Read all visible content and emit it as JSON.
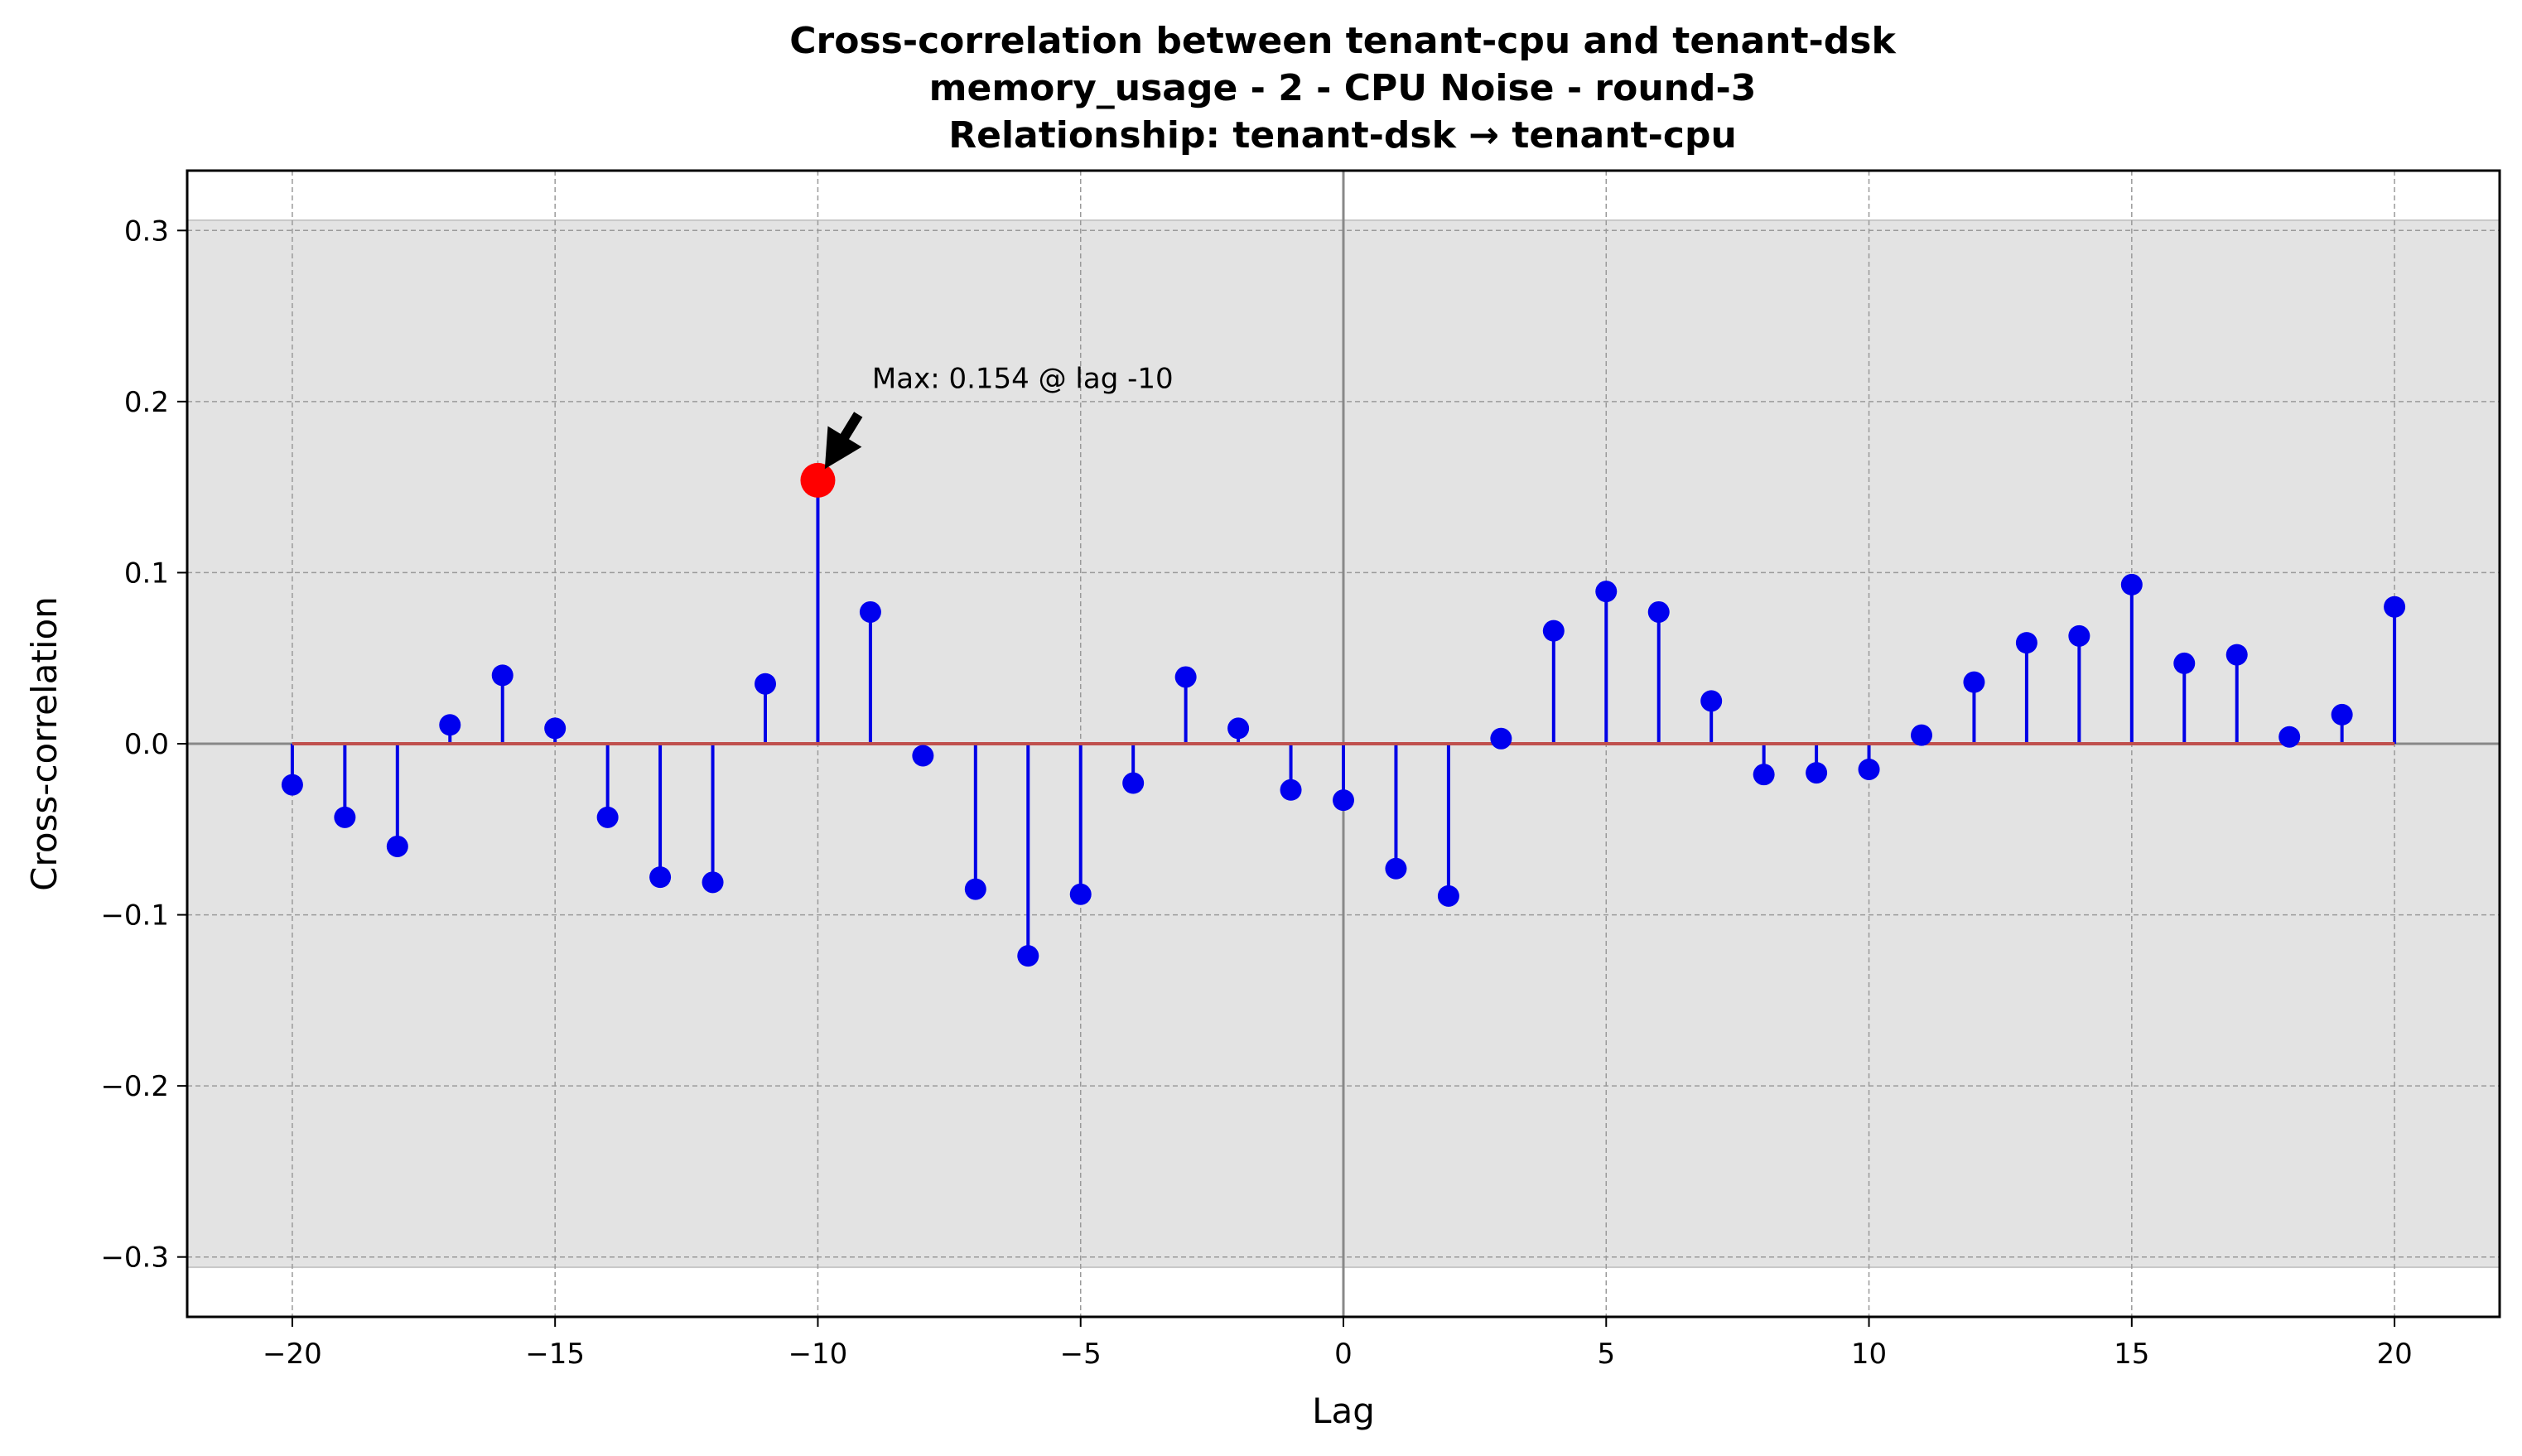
{
  "chart_data": {
    "type": "stem",
    "title_lines": [
      "Cross-correlation between tenant-cpu and tenant-dsk",
      "memory_usage - 2 - CPU Noise - round-3",
      "Relationship: tenant-dsk → tenant-cpu"
    ],
    "xlabel": "Lag",
    "ylabel": "Cross-correlation",
    "xlim": [
      -22,
      22
    ],
    "ylim": [
      -0.335,
      0.335
    ],
    "xticks": [
      -20,
      -15,
      -10,
      -5,
      0,
      5,
      10,
      15,
      20
    ],
    "xtick_labels": [
      "−20",
      "−15",
      "−10",
      "−5",
      "0",
      "5",
      "10",
      "15",
      "20"
    ],
    "yticks": [
      0.3,
      0.2,
      0.1,
      0.0,
      -0.1,
      -0.2,
      -0.3
    ],
    "ytick_labels": [
      "0.3",
      "0.2",
      "0.1",
      "0.0",
      "−0.1",
      "−0.2",
      "−0.3"
    ],
    "grid": true,
    "confidence_band": [
      -0.306,
      0.306
    ],
    "x": [
      -20,
      -19,
      -18,
      -17,
      -16,
      -15,
      -14,
      -13,
      -12,
      -11,
      -10,
      -9,
      -8,
      -7,
      -6,
      -5,
      -4,
      -3,
      -2,
      -1,
      0,
      1,
      2,
      3,
      4,
      5,
      6,
      7,
      8,
      9,
      10,
      11,
      12,
      13,
      14,
      15,
      16,
      17,
      18,
      19,
      20
    ],
    "values": [
      -0.024,
      -0.043,
      -0.06,
      0.011,
      0.04,
      0.009,
      -0.043,
      -0.078,
      -0.081,
      0.035,
      0.154,
      0.077,
      -0.007,
      -0.085,
      -0.124,
      -0.088,
      -0.023,
      0.039,
      0.009,
      -0.027,
      -0.033,
      -0.073,
      -0.089,
      0.003,
      0.066,
      0.089,
      0.077,
      0.025,
      -0.018,
      -0.017,
      -0.015,
      0.005,
      0.036,
      0.059,
      0.063,
      0.093,
      0.047,
      0.052,
      0.004,
      0.017,
      0.08
    ],
    "max_point": {
      "lag": -10,
      "value": 0.154
    },
    "annotation": "Max: 0.154 @ lag -10",
    "colors": {
      "stem": "#0000e6",
      "marker": "#0000ee",
      "baseline": "#c0504d",
      "max_marker": "#ff0000",
      "band": "#e3e3e3",
      "grid": "#9a9a9a",
      "zero_lines": "#888888"
    }
  }
}
